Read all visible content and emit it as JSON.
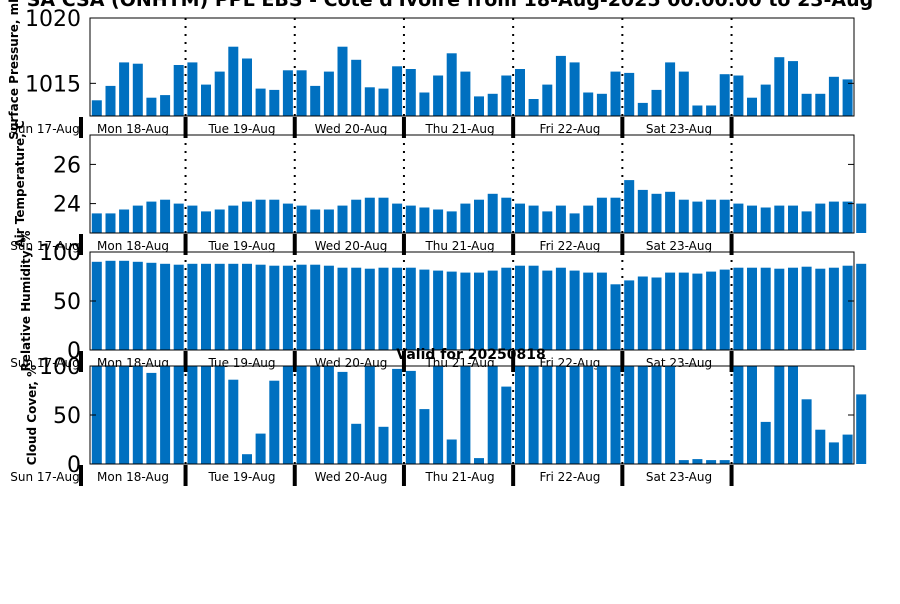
{
  "title": "SA CSA (ONHTM) PPL EBS  - Cote d'Ivoire from 18-Aug-2025 00:00:00 to 23-Aug",
  "colors": {
    "bar": "#0070c0",
    "axis": "#000000"
  },
  "days": [
    "Sun 17-Aug",
    "Mon 18-Aug",
    "Tue 19-Aug",
    "Wed 20-Aug",
    "Thu 21-Aug",
    "Fri 22-Aug",
    "Sat 23-Aug"
  ],
  "chart_data": [
    {
      "type": "bar",
      "ylabel": "Surface Pressure, mb",
      "ylim": [
        1012.5,
        1020
      ],
      "yticks": [
        1015,
        1020
      ],
      "values": [
        1013.7,
        1014.8,
        1016.6,
        1016.5,
        1013.9,
        1014.1,
        1016.4,
        1016.6,
        1014.9,
        1015.9,
        1017.8,
        1016.9,
        1014.6,
        1014.5,
        1016.0,
        1016.0,
        1014.8,
        1015.9,
        1017.8,
        1016.8,
        1014.7,
        1014.6,
        1016.3,
        1016.1,
        1014.3,
        1015.6,
        1017.3,
        1015.9,
        1014.0,
        1014.2,
        1015.6,
        1016.1,
        1013.8,
        1014.9,
        1017.1,
        1016.6,
        1014.3,
        1014.2,
        1015.9,
        1015.8,
        1013.5,
        1014.5,
        1016.6,
        1015.9,
        1013.3,
        1013.3,
        1015.7,
        1015.6,
        1013.9,
        1014.9,
        1017.0,
        1016.7,
        1014.2,
        1014.2,
        1015.5,
        1015.3
      ]
    },
    {
      "type": "bar",
      "ylabel": "Air Temperature, C",
      "ylim": [
        22.5,
        27.5
      ],
      "yticks": [
        24,
        26
      ],
      "values": [
        23.5,
        23.5,
        23.7,
        23.9,
        24.1,
        24.2,
        24.0,
        23.9,
        23.6,
        23.7,
        23.9,
        24.1,
        24.2,
        24.2,
        24.0,
        23.9,
        23.7,
        23.7,
        23.9,
        24.2,
        24.3,
        24.3,
        24.0,
        23.9,
        23.8,
        23.7,
        23.6,
        24.0,
        24.2,
        24.5,
        24.3,
        24.0,
        23.9,
        23.6,
        23.9,
        23.5,
        23.9,
        24.3,
        24.3,
        25.2,
        24.7,
        24.5,
        24.6,
        24.2,
        24.1,
        24.2,
        24.2,
        24.0,
        23.9,
        23.8,
        23.9,
        23.9,
        23.6,
        24.0,
        24.1,
        24.1,
        24.0
      ]
    },
    {
      "type": "bar",
      "ylabel": "Relative Humidity, %",
      "ylim": [
        0,
        100
      ],
      "yticks": [
        0,
        50,
        100
      ],
      "values": [
        90,
        91,
        91,
        90,
        89,
        88,
        87,
        88,
        88,
        88,
        88,
        88,
        87,
        86,
        86,
        87,
        87,
        86,
        84,
        84,
        83,
        84,
        84,
        84,
        82,
        81,
        80,
        79,
        79,
        81,
        84,
        86,
        86,
        81,
        84,
        81,
        79,
        79,
        67,
        71,
        75,
        74,
        79,
        79,
        78,
        80,
        82,
        84,
        84,
        84,
        83,
        84,
        85,
        83,
        84,
        86,
        88
      ]
    },
    {
      "type": "bar",
      "title": "Valid for 20250818",
      "ylabel": "Cloud Cover, %",
      "ylim": [
        0,
        100
      ],
      "yticks": [
        0,
        50,
        100
      ],
      "values": [
        100,
        100,
        100,
        100,
        93,
        100,
        100,
        100,
        100,
        100,
        86,
        10,
        31,
        85,
        100,
        100,
        100,
        100,
        94,
        41,
        100,
        38,
        97,
        95,
        56,
        100,
        25,
        100,
        6,
        100,
        79,
        100,
        100,
        100,
        100,
        100,
        100,
        100,
        100,
        100,
        100,
        100,
        100,
        4,
        5,
        4,
        4,
        100,
        100,
        43,
        100,
        100,
        66,
        35,
        22,
        30,
        71
      ]
    }
  ]
}
